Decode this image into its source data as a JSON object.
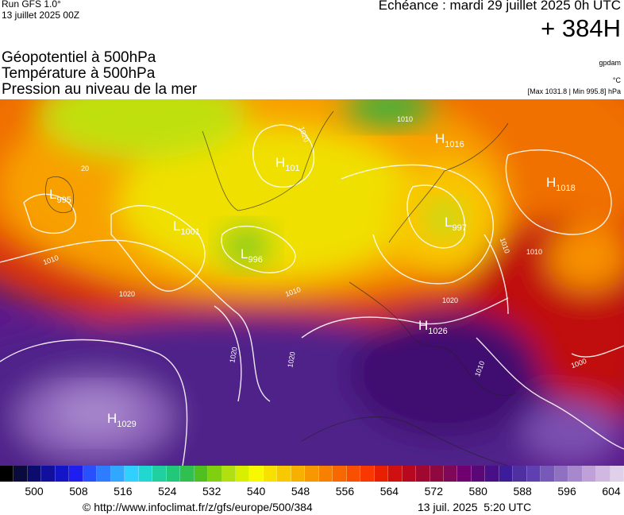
{
  "header": {
    "run": "Run GFS 1.0°",
    "run_date": "13 juillet 2025 00Z",
    "valid": "Echéance : mardi 29 juillet 2025 0h UTC",
    "lead": "+ 384H"
  },
  "legend_lines": [
    "Géopotentiel à 500hPa",
    "Température à 500hPa",
    "Pression au niveau de la mer"
  ],
  "units": {
    "geopotential": "gpdam",
    "temperature": "°C",
    "pressure": "[Max 1031.8 | Min 995.8] hPa"
  },
  "map": {
    "pressure_centers": [
      {
        "letter": "H",
        "value": "1016"
      },
      {
        "letter": "H",
        "value": "1018"
      },
      {
        "letter": "H",
        "value": "101"
      },
      {
        "letter": "L",
        "value": "995"
      },
      {
        "letter": "L",
        "value": "1001"
      },
      {
        "letter": "L",
        "value": "996"
      },
      {
        "letter": "L",
        "value": "997"
      },
      {
        "letter": "H",
        "value": "1026"
      },
      {
        "letter": "H",
        "value": "1029"
      }
    ],
    "contour_labels": [
      "1020",
      "20",
      "1010",
      "1020",
      "1010",
      "1020",
      "1020",
      "1020",
      "1010",
      "1010",
      "1000",
      "1010",
      "1010"
    ]
  },
  "colorbar": {
    "colors": [
      "#000000",
      "#0a0a3c",
      "#0c0c6e",
      "#10109c",
      "#1414c8",
      "#1e1ef0",
      "#2850ff",
      "#2e7cff",
      "#30a8ff",
      "#30d0ff",
      "#20d8d0",
      "#20d0a0",
      "#20c878",
      "#30c050",
      "#50c020",
      "#80d010",
      "#b0e010",
      "#d8f000",
      "#f8f800",
      "#f8e000",
      "#f8c800",
      "#f8b000",
      "#f89800",
      "#f88000",
      "#f86800",
      "#f85000",
      "#f83800",
      "#e82000",
      "#d01010",
      "#b80820",
      "#a00830",
      "#900840",
      "#800858",
      "#700070",
      "#5a0878",
      "#481088",
      "#3c1c98",
      "#5030a0",
      "#6040b0",
      "#7858b8",
      "#9070c0",
      "#a888cc",
      "#c0a0d8",
      "#d0b8e0",
      "#e0d0ea"
    ],
    "ticks": [
      500,
      508,
      516,
      524,
      532,
      540,
      548,
      556,
      564,
      572,
      580,
      588,
      596,
      604
    ]
  },
  "footer": {
    "url": "© http://www.infoclimat.fr/z/gfs/europe/500/384",
    "stamp": "13 juil. 2025  5:20 UTC"
  }
}
